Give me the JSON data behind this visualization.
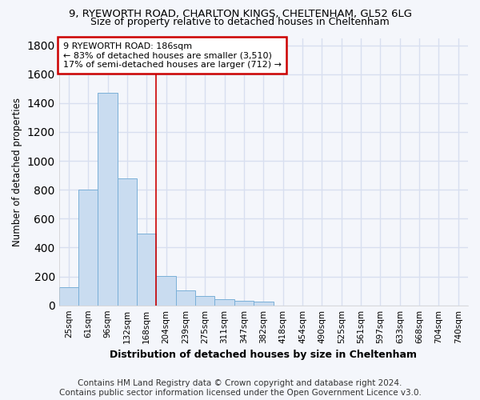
{
  "title1": "9, RYEWORTH ROAD, CHARLTON KINGS, CHELTENHAM, GL52 6LG",
  "title2": "Size of property relative to detached houses in Cheltenham",
  "xlabel": "Distribution of detached houses by size in Cheltenham",
  "ylabel": "Number of detached properties",
  "footer1": "Contains HM Land Registry data © Crown copyright and database right 2024.",
  "footer2": "Contains public sector information licensed under the Open Government Licence v3.0.",
  "categories": [
    "25sqm",
    "61sqm",
    "96sqm",
    "132sqm",
    "168sqm",
    "204sqm",
    "239sqm",
    "275sqm",
    "311sqm",
    "347sqm",
    "382sqm",
    "418sqm",
    "454sqm",
    "490sqm",
    "525sqm",
    "561sqm",
    "597sqm",
    "633sqm",
    "668sqm",
    "704sqm",
    "740sqm"
  ],
  "values": [
    125,
    800,
    1470,
    880,
    495,
    205,
    105,
    65,
    42,
    32,
    25,
    0,
    0,
    0,
    0,
    0,
    0,
    0,
    0,
    0,
    0
  ],
  "bar_color": "#c9dcf0",
  "bar_edge_color": "#7ab0d8",
  "vline_x": 4.5,
  "vline_color": "#cc0000",
  "annotation_text": "9 RYEWORTH ROAD: 186sqm\n← 83% of detached houses are smaller (3,510)\n17% of semi-detached houses are larger (712) →",
  "annotation_box_color": "white",
  "annotation_box_edge_color": "#cc0000",
  "ylim": [
    0,
    1850
  ],
  "yticks": [
    0,
    200,
    400,
    600,
    800,
    1000,
    1200,
    1400,
    1600,
    1800
  ],
  "background_color": "#f4f6fb",
  "grid_color": "#d8dff0",
  "title1_fontsize": 9.5,
  "title2_fontsize": 9,
  "footer_fontsize": 7.5
}
